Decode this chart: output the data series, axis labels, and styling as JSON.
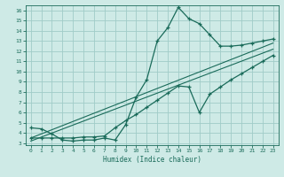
{
  "xlabel": "Humidex (Indice chaleur)",
  "ylabel": "",
  "bg_color": "#ceeae6",
  "grid_color": "#a0ccc8",
  "line_color": "#1a6b5a",
  "xlim": [
    -0.5,
    23.5
  ],
  "ylim": [
    2.8,
    16.5
  ],
  "yticks": [
    3,
    4,
    5,
    6,
    7,
    8,
    9,
    10,
    11,
    12,
    13,
    14,
    15,
    16
  ],
  "xticks": [
    0,
    1,
    2,
    3,
    4,
    5,
    6,
    7,
    8,
    9,
    10,
    11,
    12,
    13,
    14,
    15,
    16,
    17,
    18,
    19,
    20,
    21,
    22,
    23
  ],
  "curve1_x": [
    0,
    1,
    2,
    3,
    4,
    5,
    6,
    7,
    8,
    9,
    10,
    11,
    12,
    13,
    14,
    15,
    16,
    17,
    18,
    19,
    20,
    21,
    22,
    23
  ],
  "curve1_y": [
    4.5,
    4.4,
    3.9,
    3.3,
    3.2,
    3.3,
    3.3,
    3.5,
    3.3,
    4.8,
    7.5,
    9.2,
    13.0,
    14.3,
    16.3,
    15.2,
    14.7,
    13.6,
    12.5,
    12.5,
    12.6,
    12.8,
    13.0,
    13.2
  ],
  "curve2_x": [
    0,
    1,
    2,
    3,
    4,
    5,
    6,
    7,
    8,
    9,
    10,
    11,
    12,
    13,
    14,
    15,
    16,
    17,
    18,
    19,
    20,
    21,
    22,
    23
  ],
  "curve2_y": [
    3.5,
    3.5,
    3.5,
    3.5,
    3.5,
    3.6,
    3.6,
    3.7,
    4.5,
    5.2,
    5.8,
    6.5,
    7.2,
    7.9,
    8.6,
    8.5,
    6.0,
    7.8,
    8.5,
    9.2,
    9.8,
    10.4,
    11.0,
    11.6
  ],
  "line1_x": [
    0,
    23
  ],
  "line1_y": [
    3.5,
    12.8
  ],
  "line2_x": [
    0,
    23
  ],
  "line2_y": [
    3.2,
    12.2
  ]
}
